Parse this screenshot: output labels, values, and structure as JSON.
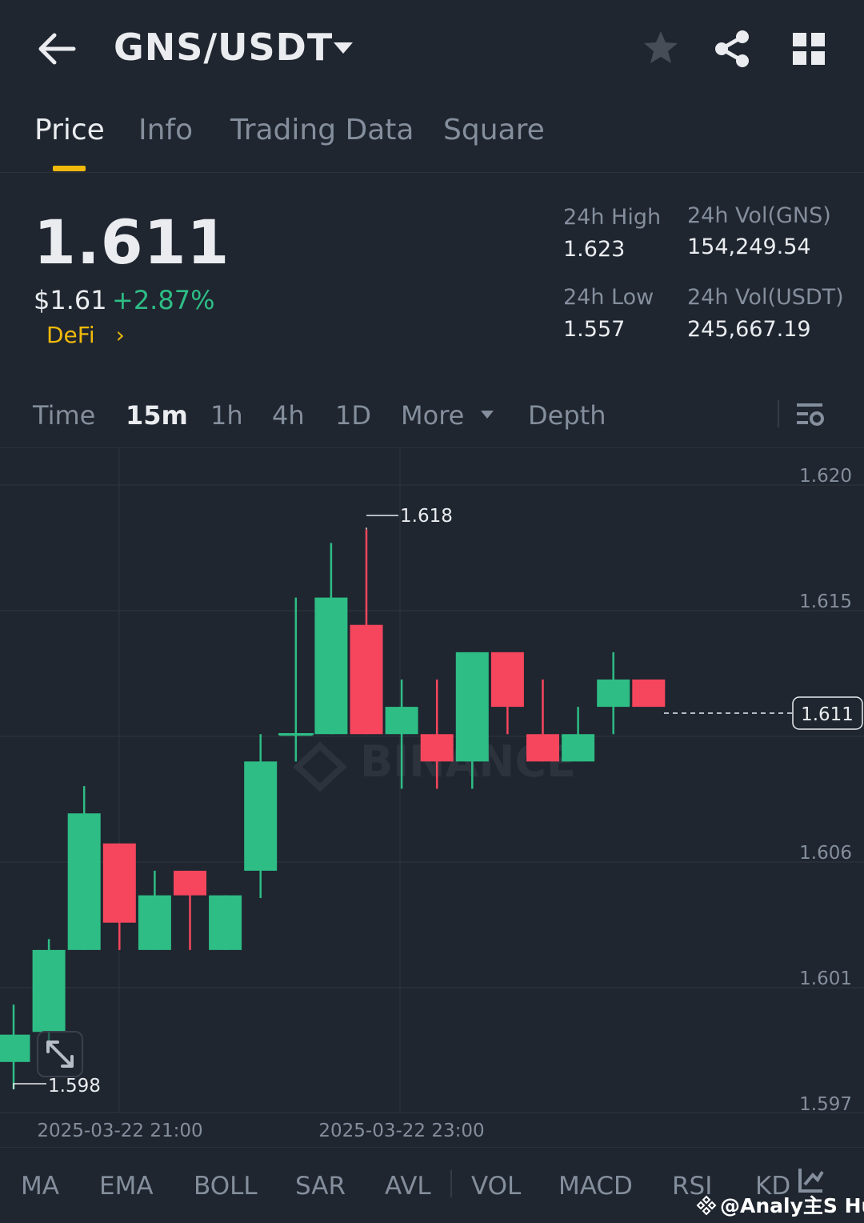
{
  "header": {
    "pair": "GNS/USDT"
  },
  "tabs": [
    "Price",
    "Info",
    "Trading Data",
    "Square"
  ],
  "ticker": {
    "last_price": "1.611",
    "usd_price": "$1.61",
    "change_pct": "+2.87%",
    "category": "DeFi",
    "high_label": "24h High",
    "high_value": "1.623",
    "low_label": "24h Low",
    "low_value": "1.557",
    "vol_base_label": "24h Vol(GNS)",
    "vol_base_value": "154,249.54",
    "vol_quote_label": "24h Vol(USDT)",
    "vol_quote_value": "245,667.19"
  },
  "intervals": [
    "Time",
    "15m",
    "1h",
    "4h",
    "1D",
    "More",
    "Depth"
  ],
  "colors": {
    "up": "#2ebd85",
    "down": "#f6465d",
    "accent": "#f0b90b",
    "bg": "#1f2630"
  },
  "chart_data": {
    "type": "candlestick",
    "y_ticks": [
      "1.620",
      "1.615",
      "1.611",
      "1.606",
      "1.601",
      "1.597"
    ],
    "x_ticks": [
      "2025-03-22 21:00",
      "2025-03-22 23:00"
    ],
    "max_label": "1.618",
    "min_label": "1.598",
    "last_price_label": "1.611",
    "watermark": "BINANCE",
    "candles": [
      {
        "o": 1.5985,
        "h": 1.6006,
        "l": 1.5975,
        "c": 1.5995
      },
      {
        "o": 1.5996,
        "h": 1.603,
        "l": 1.599,
        "c": 1.6026
      },
      {
        "o": 1.6026,
        "h": 1.6086,
        "l": 1.6026,
        "c": 1.6076
      },
      {
        "o": 1.6065,
        "h": 1.6065,
        "l": 1.6026,
        "c": 1.6036
      },
      {
        "o": 1.6026,
        "h": 1.6055,
        "l": 1.6026,
        "c": 1.6046
      },
      {
        "o": 1.6055,
        "h": 1.6055,
        "l": 1.6026,
        "c": 1.6046
      },
      {
        "o": 1.6026,
        "h": 1.6046,
        "l": 1.6026,
        "c": 1.6046
      },
      {
        "o": 1.6055,
        "h": 1.6105,
        "l": 1.6045,
        "c": 1.6095
      },
      {
        "o": 1.6105,
        "h": 1.6155,
        "l": 1.6095,
        "c": 1.6105
      },
      {
        "o": 1.6105,
        "h": 1.6175,
        "l": 1.6105,
        "c": 1.6155
      },
      {
        "o": 1.6145,
        "h": 1.618,
        "l": 1.6105,
        "c": 1.6105
      },
      {
        "o": 1.6105,
        "h": 1.6125,
        "l": 1.6085,
        "c": 1.6115
      },
      {
        "o": 1.6105,
        "h": 1.6125,
        "l": 1.6085,
        "c": 1.6095
      },
      {
        "o": 1.6095,
        "h": 1.6135,
        "l": 1.6085,
        "c": 1.6135
      },
      {
        "o": 1.6135,
        "h": 1.6135,
        "l": 1.6105,
        "c": 1.6115
      },
      {
        "o": 1.6105,
        "h": 1.6125,
        "l": 1.6095,
        "c": 1.6095
      },
      {
        "o": 1.6095,
        "h": 1.6115,
        "l": 1.6095,
        "c": 1.6105
      },
      {
        "o": 1.6115,
        "h": 1.6135,
        "l": 1.6105,
        "c": 1.6125
      },
      {
        "o": 1.6125,
        "h": 1.6125,
        "l": 1.6115,
        "c": 1.6115
      }
    ]
  },
  "indicators": [
    "MA",
    "EMA",
    "BOLL",
    "SAR",
    "AVL",
    "VOL",
    "MACD",
    "RSI",
    "KD"
  ],
  "watermark_footer": "@Analy主S Hub"
}
